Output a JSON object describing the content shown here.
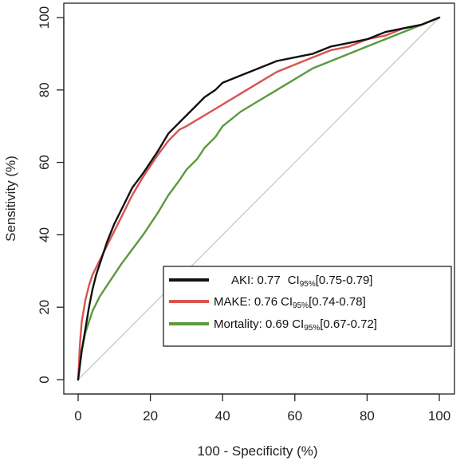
{
  "chart_data": {
    "type": "line",
    "xlabel": "100 - Specificity (%)",
    "ylabel": "Sensitivity (%)",
    "xlim": [
      0,
      100
    ],
    "ylim": [
      0,
      100
    ],
    "x_ticks": [
      "0",
      "20",
      "40",
      "60",
      "80",
      "100"
    ],
    "y_ticks": [
      "0",
      "20",
      "40",
      "60",
      "80",
      "100"
    ],
    "grid": false,
    "legend_position": "bottom-right",
    "reference_line": {
      "x": [
        0,
        100
      ],
      "y": [
        0,
        100
      ],
      "color": "#c8c8c8"
    },
    "series": [
      {
        "label": "AKI: 0.77",
        "ci_label": "CI",
        "ci_sub": "95%",
        "ci_range": "[0.75-0.79]",
        "color": "#111111",
        "x": [
          0,
          1,
          2,
          3,
          4,
          5,
          6,
          8,
          10,
          12,
          15,
          18,
          20,
          22,
          25,
          28,
          30,
          33,
          35,
          38,
          40,
          45,
          50,
          55,
          60,
          65,
          70,
          75,
          80,
          85,
          90,
          95,
          100
        ],
        "y": [
          0,
          8,
          14,
          20,
          25,
          29,
          32,
          38,
          43,
          47,
          53,
          57,
          60,
          63,
          68,
          71,
          73,
          76,
          78,
          80,
          82,
          84,
          86,
          88,
          89,
          90,
          92,
          93,
          94,
          96,
          97,
          98,
          100
        ]
      },
      {
        "label": "MAKE: 0.76",
        "ci_label": "CI",
        "ci_sub": "95%",
        "ci_range": "[0.74-0.78]",
        "color": "#d9534f",
        "x": [
          0,
          0.5,
          1,
          2,
          3,
          4,
          6,
          8,
          10,
          12,
          15,
          18,
          20,
          22,
          25,
          28,
          30,
          35,
          40,
          45,
          50,
          55,
          60,
          65,
          70,
          75,
          80,
          85,
          90,
          95,
          100
        ],
        "y": [
          0,
          10,
          16,
          22,
          26,
          29,
          33,
          37,
          41,
          45,
          51,
          56,
          59,
          62,
          66,
          69,
          70,
          73,
          76,
          79,
          82,
          85,
          87,
          89,
          91,
          92,
          94,
          95,
          97,
          98,
          100
        ]
      },
      {
        "label": "Mortality: 0.69",
        "ci_label": "CI",
        "ci_sub": "95%",
        "ci_range": "[0.67-0.72]",
        "color": "#5a9a3c",
        "x": [
          0,
          1,
          2,
          4,
          6,
          8,
          10,
          12,
          15,
          18,
          20,
          22,
          25,
          28,
          30,
          33,
          35,
          38,
          40,
          45,
          50,
          55,
          60,
          65,
          70,
          75,
          80,
          85,
          90,
          95,
          100
        ],
        "y": [
          0,
          8,
          13,
          19,
          23,
          26,
          29,
          32,
          36,
          40,
          43,
          46,
          51,
          55,
          58,
          61,
          64,
          67,
          70,
          74,
          77,
          80,
          83,
          86,
          88,
          90,
          92,
          94,
          96,
          98,
          100
        ]
      }
    ]
  }
}
